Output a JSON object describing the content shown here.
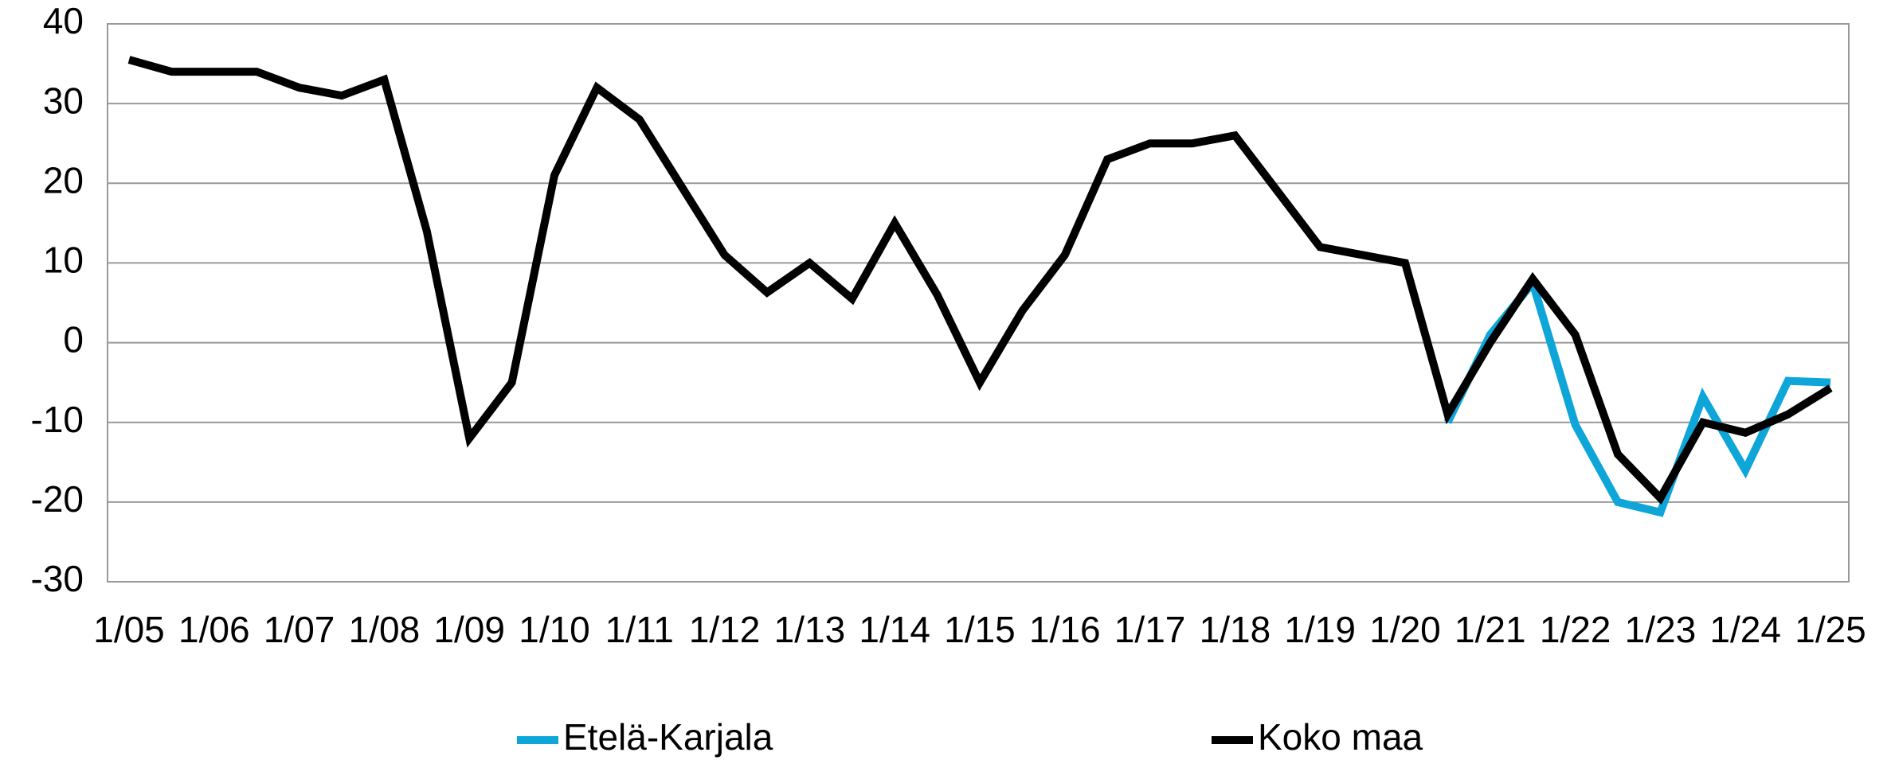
{
  "chart_data": {
    "type": "line",
    "categories": [
      "1/05",
      null,
      "1/06",
      null,
      "1/07",
      null,
      "1/08",
      null,
      "1/09",
      null,
      "1/10",
      null,
      "1/11",
      null,
      "1/12",
      null,
      "1/13",
      null,
      "1/14",
      null,
      "1/15",
      null,
      "1/16",
      null,
      "1/17",
      null,
      "1/18",
      null,
      "1/19",
      null,
      "1/20",
      null,
      "1/21",
      null,
      "1/22",
      null,
      "1/23",
      null,
      "1/24",
      null,
      "1/25"
    ],
    "series": [
      {
        "name": "Etelä-Karjala",
        "color": "#0ea5d8",
        "values": [
          null,
          null,
          null,
          null,
          null,
          null,
          null,
          null,
          null,
          null,
          null,
          null,
          null,
          null,
          null,
          null,
          null,
          null,
          null,
          null,
          null,
          null,
          null,
          null,
          null,
          null,
          null,
          null,
          null,
          null,
          null,
          -10,
          1,
          7.5,
          -10.3,
          -20,
          -21.3,
          -6.8,
          -16,
          -4.8,
          -5
        ]
      },
      {
        "name": "Koko maa",
        "color": "#000000",
        "values": [
          35.5,
          34,
          34,
          34,
          32,
          31,
          33,
          14,
          -12,
          -5,
          21,
          32,
          28,
          19.5,
          11,
          6.3,
          10,
          5.5,
          15,
          6,
          -5,
          4,
          11,
          23,
          25,
          25,
          26,
          19,
          12,
          11,
          10,
          -9,
          0,
          8,
          1,
          -14,
          -19.5,
          -10,
          -11.3,
          -9,
          -5.7
        ]
      }
    ],
    "ylim": [
      -30,
      40
    ],
    "yticks": [
      -30,
      -20,
      -10,
      0,
      10,
      20,
      30,
      40
    ],
    "grid": true,
    "legend": "bottom"
  }
}
